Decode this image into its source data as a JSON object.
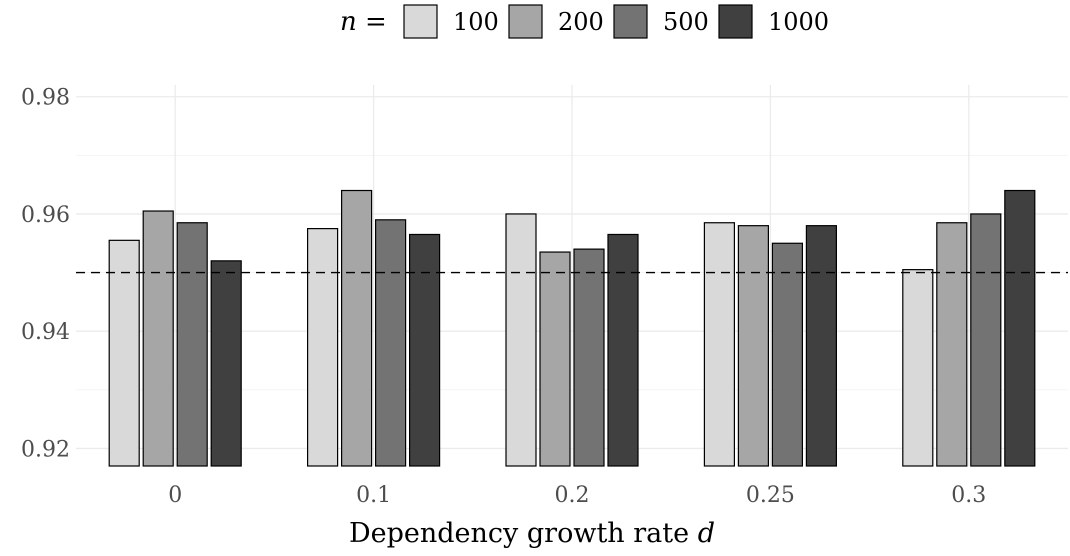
{
  "chart_data": {
    "type": "bar",
    "title": "",
    "xlabel": "Dependency growth rate",
    "xlabel_symbol": "d",
    "ylabel": "",
    "categories": [
      "0",
      "0.1",
      "0.2",
      "0.25",
      "0.3"
    ],
    "ylim": [
      0.917,
      0.982
    ],
    "yticks": [
      0.92,
      0.94,
      0.96,
      0.98
    ],
    "ytick_labels": [
      "0.92",
      "0.94",
      "0.96",
      "0.98"
    ],
    "reference_line": {
      "y": 0.95,
      "style": "dashed",
      "color": "#000000"
    },
    "legend": {
      "title": "n =",
      "placement": "top-center",
      "orientation": "horizontal"
    },
    "grid": true,
    "series": [
      {
        "name": "100",
        "color": "#d9d9d9",
        "values": [
          0.9555,
          0.9575,
          0.96,
          0.9585,
          0.9505
        ]
      },
      {
        "name": "200",
        "color": "#a6a6a6",
        "values": [
          0.9605,
          0.964,
          0.9535,
          0.958,
          0.9585
        ]
      },
      {
        "name": "500",
        "color": "#737373",
        "values": [
          0.9585,
          0.959,
          0.954,
          0.955,
          0.96
        ]
      },
      {
        "name": "1000",
        "color": "#404040",
        "values": [
          0.952,
          0.9565,
          0.9565,
          0.958,
          0.964
        ]
      }
    ]
  }
}
